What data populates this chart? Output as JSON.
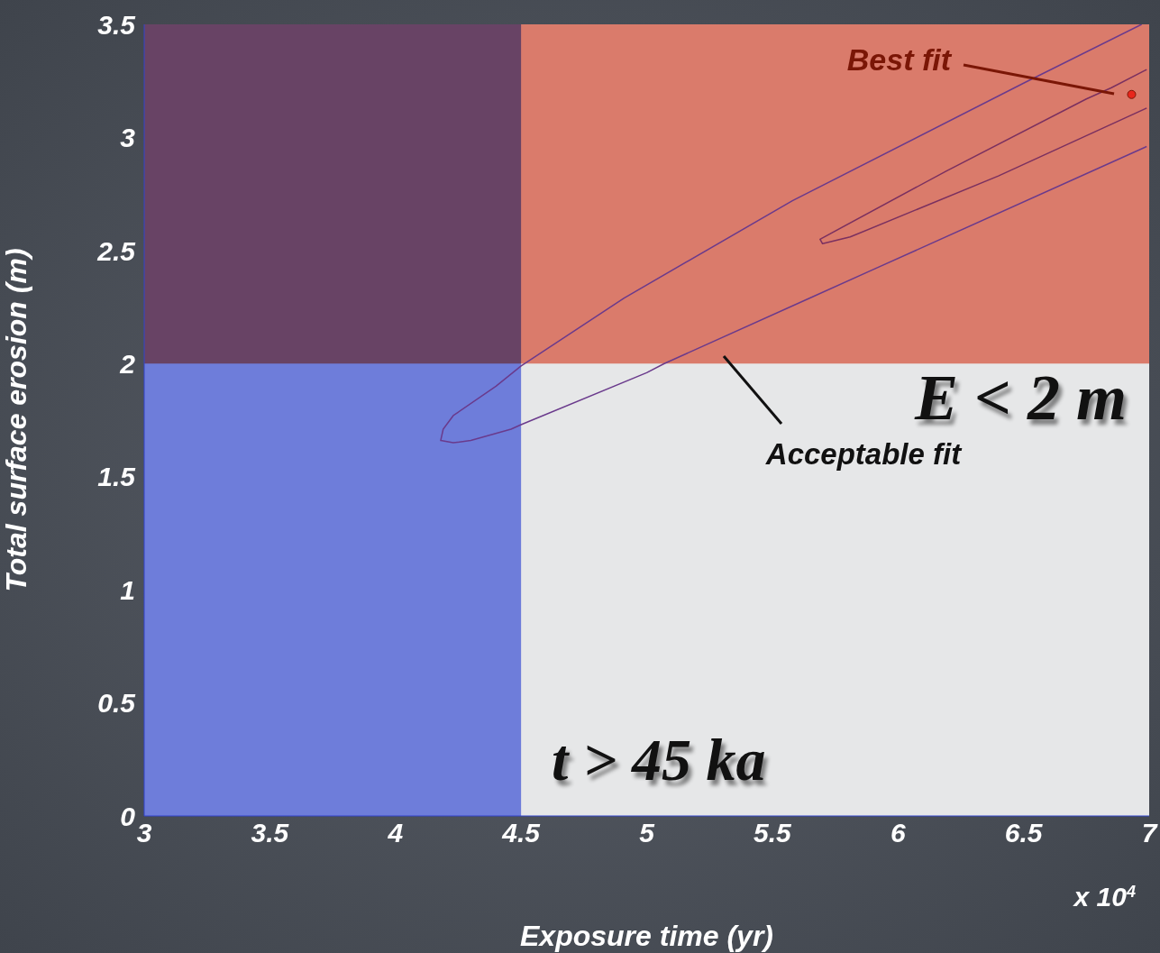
{
  "chart_data": {
    "type": "line",
    "xlabel": "Exposure time (yr)",
    "ylabel": "Total surface erosion (m)",
    "xlim": [
      3,
      7
    ],
    "xticks": [
      3,
      3.5,
      4,
      4.5,
      5,
      5.5,
      6,
      6.5,
      7
    ],
    "ylim": [
      0,
      3.5
    ],
    "yticks": [
      0,
      0.5,
      1,
      1.5,
      2,
      2.5,
      3,
      3.5
    ],
    "grid": false,
    "marker": "none",
    "line_style": "solid",
    "series": [
      {
        "color": "#6a3a8c",
        "x": [
          6.97,
          6.5,
          5.58,
          4.91,
          4.5,
          4.4,
          4.23,
          4.19,
          4.18,
          4.23,
          4.3,
          4.46,
          4.5,
          5.0,
          5.07,
          5.65,
          5.91,
          6.99
        ],
        "values": [
          3.5,
          3.24,
          2.72,
          2.29,
          1.99,
          1.9,
          1.77,
          1.71,
          1.66,
          1.65,
          1.66,
          1.71,
          1.73,
          1.96,
          2.0,
          2.29,
          2.42,
          2.96
        ]
      },
      {
        "color": "#7a3060",
        "x": [
          6.99,
          6.85,
          6.75,
          6.19,
          5.69,
          5.7,
          5.81,
          6.4,
          6.99
        ],
        "values": [
          3.3,
          3.22,
          3.17,
          2.85,
          2.55,
          2.53,
          2.56,
          2.83,
          3.13
        ]
      },
      {
        "type": "scatter",
        "marker": "circle",
        "color": "#e8261c",
        "x": [
          6.93
        ],
        "values": [
          3.19
        ]
      }
    ],
    "bands": [
      {
        "axis": "x",
        "from": 3,
        "to": 4.5,
        "color": "#7a8af0"
      },
      {
        "axis": "y",
        "from": 2,
        "to": 3.5,
        "color": "#f28876"
      }
    ],
    "annotations": [
      "Best fit",
      "Acceptable fit",
      "E < 2 m",
      "t > 45 ka",
      "x 10$^{4}$"
    ]
  }
}
